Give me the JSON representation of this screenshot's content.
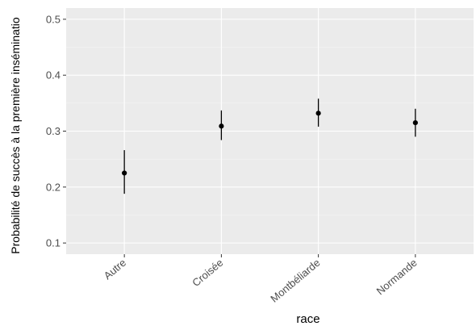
{
  "chart_data": {
    "type": "scatter",
    "title": "",
    "xlabel": "race",
    "ylabel": "Probabilité de succès à la première inséminatio",
    "categories": [
      "Autre",
      "Croisée",
      "Montbéliarde",
      "Normande"
    ],
    "estimates": [
      0.225,
      0.309,
      0.332,
      0.315
    ],
    "lower": [
      0.188,
      0.284,
      0.308,
      0.29
    ],
    "upper": [
      0.266,
      0.337,
      0.358,
      0.34
    ],
    "ylim": [
      0.08,
      0.52
    ],
    "yticks": [
      0.1,
      0.2,
      0.3,
      0.4,
      0.5
    ],
    "ytick_labels": [
      "0.1",
      "0.2",
      "0.3",
      "0.4",
      "0.5"
    ],
    "grid": true,
    "legend": "none",
    "colors": {
      "panel_background": "#ebebeb",
      "grid_major": "#ffffff",
      "point": "#000000",
      "error_bar": "#000000"
    }
  }
}
